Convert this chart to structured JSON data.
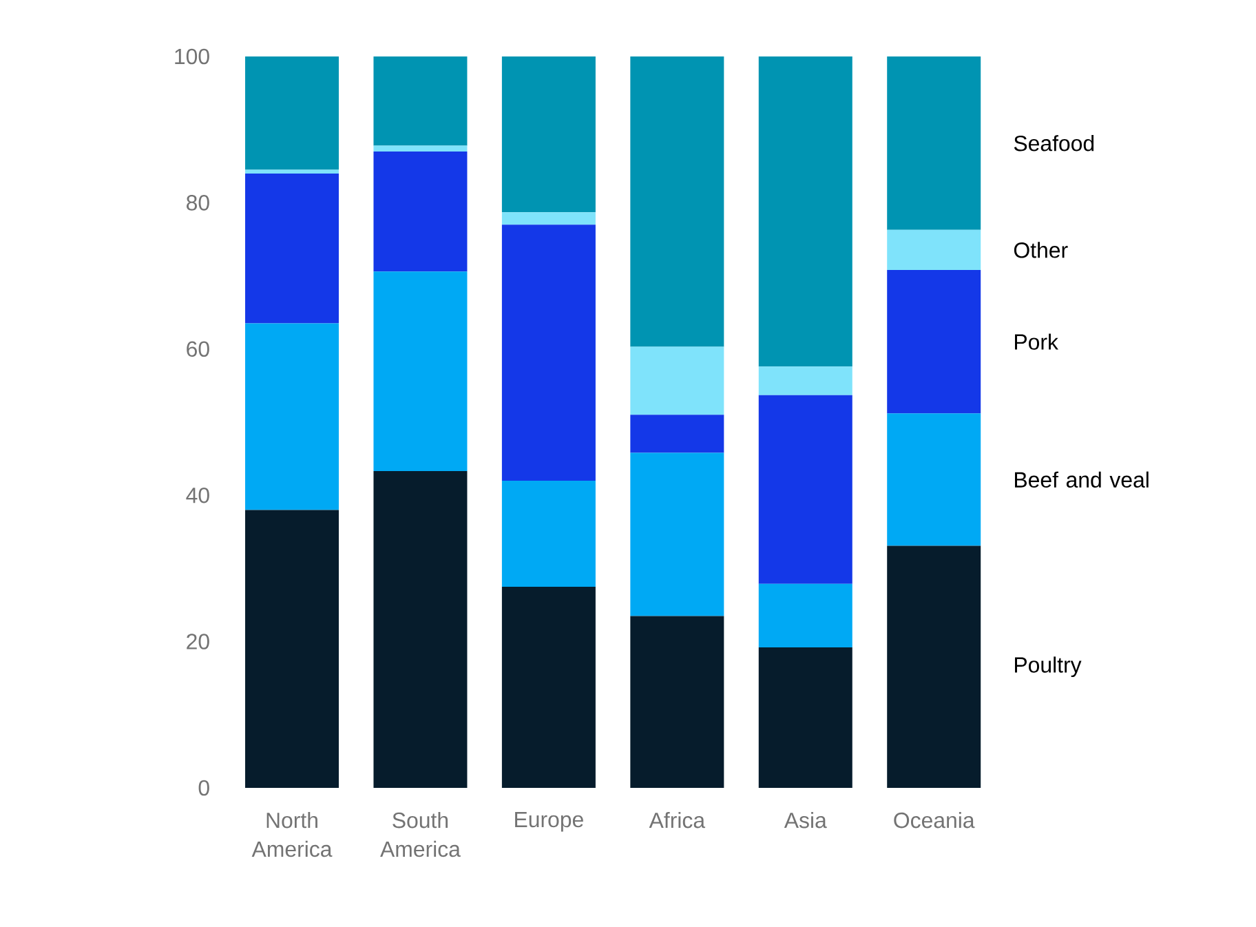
{
  "chart_data": {
    "type": "bar",
    "stacked": true,
    "grid": false,
    "categories": [
      "North America",
      "South America",
      "Europe",
      "Africa",
      "Asia",
      "Oceania"
    ],
    "ylim": [
      0,
      100
    ],
    "yticks": [
      0,
      20,
      40,
      60,
      80,
      100
    ],
    "series": [
      {
        "name": "Poultry",
        "color": "#061c2c",
        "values": [
          38,
          43.3,
          27.5,
          23.5,
          19.2,
          33.1
        ]
      },
      {
        "name": "Beef and veal",
        "color": "#00a9f4",
        "values": [
          25.5,
          27.3,
          14.5,
          22.3,
          8.7,
          18.1
        ]
      },
      {
        "name": "Pork",
        "color": "#1438e8",
        "values": [
          20.5,
          16.4,
          35,
          5.2,
          25.8,
          19.6
        ]
      },
      {
        "name": "Other",
        "color": "#7fe3fb",
        "values": [
          0.5,
          0.8,
          1.7,
          9.3,
          3.9,
          5.5
        ]
      },
      {
        "name": "Seafood",
        "color": "#0094b2",
        "values": [
          15.5,
          12.2,
          21.3,
          39.7,
          42.4,
          23.7
        ]
      }
    ]
  }
}
